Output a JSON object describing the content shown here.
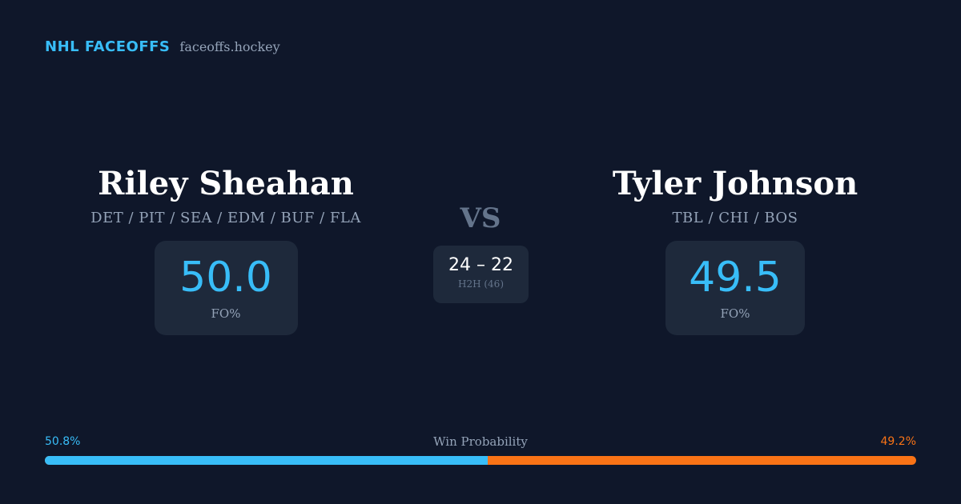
{
  "brand": {
    "name": "NHL FACEOFFS",
    "site": "faceoffs.hockey"
  },
  "player_left": {
    "name": "Riley Sheahan",
    "teams": "DET / PIT / SEA / EDM / BUF / FLA",
    "fo_pct": "50.0",
    "fo_label": "FO%"
  },
  "player_right": {
    "name": "Tyler Johnson",
    "teams": "TBL / CHI / BOS",
    "fo_pct": "49.5",
    "fo_label": "FO%"
  },
  "versus": {
    "label": "VS",
    "score": "24 – 22",
    "h2h_label": "H2H (46)"
  },
  "win_probability": {
    "title": "Win Probability",
    "left_label": "50.8%",
    "right_label": "49.2%",
    "left_value": 50.8,
    "right_value": 49.2
  },
  "colors": {
    "background": "#0f172a",
    "card": "#1e293b",
    "accent_left": "#38bdf8",
    "accent_right": "#f97316",
    "muted": "#94a3b8"
  }
}
